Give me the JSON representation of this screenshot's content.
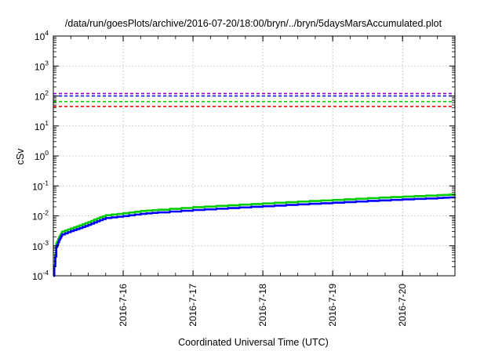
{
  "chart_data": {
    "type": "line",
    "title": "/data/run/goesPlots/archive/2016-07-20/18:00/bryn/../bryn/5daysMarsAccumulated.plot",
    "xlabel": "Coordinated Universal Time (UTC)",
    "ylabel": "cSv",
    "yscale": "log",
    "ylim": [
      0.0001,
      10000
    ],
    "yticks": [
      {
        "base": "10",
        "exp": "-4",
        "value": 0.0001
      },
      {
        "base": "10",
        "exp": "-3",
        "value": 0.001
      },
      {
        "base": "10",
        "exp": "-2",
        "value": 0.01
      },
      {
        "base": "10",
        "exp": "-1",
        "value": 0.1
      },
      {
        "base": "10",
        "exp": "0",
        "value": 1
      },
      {
        "base": "10",
        "exp": "1",
        "value": 10
      },
      {
        "base": "10",
        "exp": "2",
        "value": 100
      },
      {
        "base": "10",
        "exp": "3",
        "value": 1000
      },
      {
        "base": "10",
        "exp": "4",
        "value": 10000
      }
    ],
    "xlim": [
      "2016-07-15 00:00",
      "2016-07-20 18:00"
    ],
    "xticks": [
      {
        "label": "2016-7-16",
        "value": "2016-07-16"
      },
      {
        "label": "2016-7-17",
        "value": "2016-07-17"
      },
      {
        "label": "2016-7-18",
        "value": "2016-07-18"
      },
      {
        "label": "2016-7-19",
        "value": "2016-07-19"
      },
      {
        "label": "2016-7-20",
        "value": "2016-07-20"
      }
    ],
    "grid": true,
    "reference_lines": [
      {
        "y": 120,
        "color": "#9400d3",
        "style": "dashed"
      },
      {
        "y": 100,
        "color": "#0000ff",
        "style": "dashed"
      },
      {
        "y": 65,
        "color": "#00cc00",
        "style": "dashed"
      },
      {
        "y": 45,
        "color": "#ff0000",
        "style": "dashed"
      }
    ],
    "series": [
      {
        "color": "#00cc00",
        "x": [
          "2016-07-15 00:00",
          "2016-07-15 01:00",
          "2016-07-15 02:00",
          "2016-07-15 03:00",
          "2016-07-15 06:00",
          "2016-07-15 09:00",
          "2016-07-15 12:00",
          "2016-07-15 15:00",
          "2016-07-15 18:00",
          "2016-07-16 00:00",
          "2016-07-16 06:00",
          "2016-07-16 12:00",
          "2016-07-17 00:00",
          "2016-07-17 12:00",
          "2016-07-18 00:00",
          "2016-07-18 12:00",
          "2016-07-19 00:00",
          "2016-07-19 12:00",
          "2016-07-20 00:00",
          "2016-07-20 12:00",
          "2016-07-20 18:00"
        ],
        "y": [
          0.0001,
          0.0012,
          0.002,
          0.003,
          0.0038,
          0.0048,
          0.0062,
          0.0082,
          0.0105,
          0.0122,
          0.0145,
          0.016,
          0.0195,
          0.0225,
          0.026,
          0.03,
          0.034,
          0.039,
          0.044,
          0.049,
          0.052
        ]
      },
      {
        "color": "#0000ff",
        "x": [
          "2016-07-15 00:00",
          "2016-07-15 01:00",
          "2016-07-15 02:00",
          "2016-07-15 03:00",
          "2016-07-15 06:00",
          "2016-07-15 09:00",
          "2016-07-15 12:00",
          "2016-07-15 15:00",
          "2016-07-15 18:00",
          "2016-07-16 00:00",
          "2016-07-16 06:00",
          "2016-07-16 12:00",
          "2016-07-17 00:00",
          "2016-07-17 12:00",
          "2016-07-18 00:00",
          "2016-07-18 12:00",
          "2016-07-19 00:00",
          "2016-07-19 12:00",
          "2016-07-20 00:00",
          "2016-07-20 12:00",
          "2016-07-20 18:00"
        ],
        "y": [
          0.0001,
          0.0009,
          0.0016,
          0.0024,
          0.0031,
          0.0039,
          0.005,
          0.0066,
          0.0085,
          0.0098,
          0.0117,
          0.0131,
          0.0157,
          0.0182,
          0.021,
          0.0242,
          0.0275,
          0.0315,
          0.0355,
          0.0395,
          0.042
        ]
      }
    ]
  }
}
